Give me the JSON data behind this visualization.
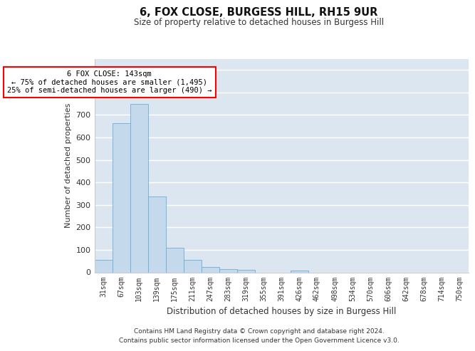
{
  "title": "6, FOX CLOSE, BURGESS HILL, RH15 9UR",
  "subtitle": "Size of property relative to detached houses in Burgess Hill",
  "xlabel": "Distribution of detached houses by size in Burgess Hill",
  "ylabel": "Number of detached properties",
  "bar_color": "#c5d9ed",
  "bar_edge_color": "#6aaed6",
  "background_color": "#dce6f0",
  "categories": [
    "31sqm",
    "67sqm",
    "103sqm",
    "139sqm",
    "175sqm",
    "211sqm",
    "247sqm",
    "283sqm",
    "319sqm",
    "355sqm",
    "391sqm",
    "426sqm",
    "462sqm",
    "498sqm",
    "534sqm",
    "570sqm",
    "606sqm",
    "642sqm",
    "678sqm",
    "714sqm",
    "750sqm"
  ],
  "values": [
    57,
    663,
    750,
    337,
    108,
    55,
    25,
    13,
    10,
    0,
    0,
    8,
    0,
    0,
    0,
    0,
    0,
    0,
    0,
    0,
    0
  ],
  "ylim": [
    0,
    950
  ],
  "yticks": [
    0,
    100,
    200,
    300,
    400,
    500,
    600,
    700,
    800,
    900
  ],
  "annotation_box_text": "6 FOX CLOSE: 143sqm\n← 75% of detached houses are smaller (1,495)\n25% of semi-detached houses are larger (490) →",
  "annotation_box_color": "white",
  "annotation_box_edge_color": "red",
  "footer_line1": "Contains HM Land Registry data © Crown copyright and database right 2024.",
  "footer_line2": "Contains public sector information licensed under the Open Government Licence v3.0."
}
